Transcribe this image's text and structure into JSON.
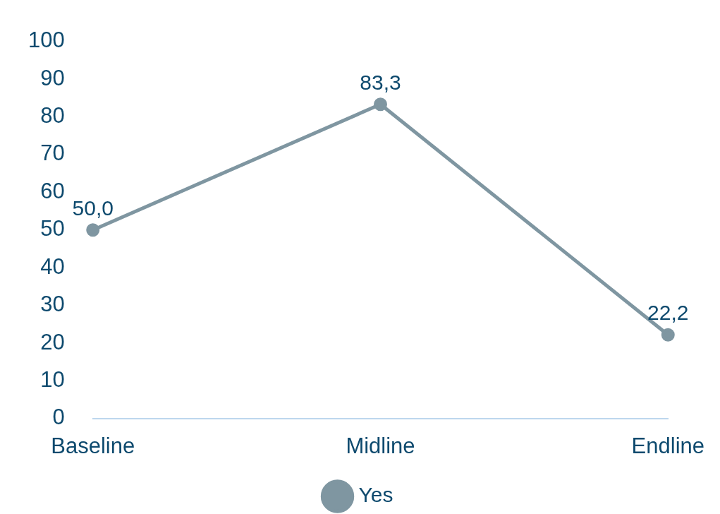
{
  "chart_data": {
    "type": "line",
    "categories": [
      "Baseline",
      "Midline",
      "Endline"
    ],
    "series": [
      {
        "name": "Yes",
        "color": "#7f96a1",
        "values": [
          50,
          83.3,
          22.2
        ],
        "value_labels": [
          "50,0",
          "83,3",
          "22,2"
        ]
      }
    ],
    "ylim": [
      0,
      100
    ],
    "yticks": [
      0,
      10,
      20,
      30,
      40,
      50,
      60,
      70,
      80,
      90,
      100
    ],
    "grid": false,
    "legend": "bottom",
    "marker": "circle",
    "line_style": "solid"
  }
}
